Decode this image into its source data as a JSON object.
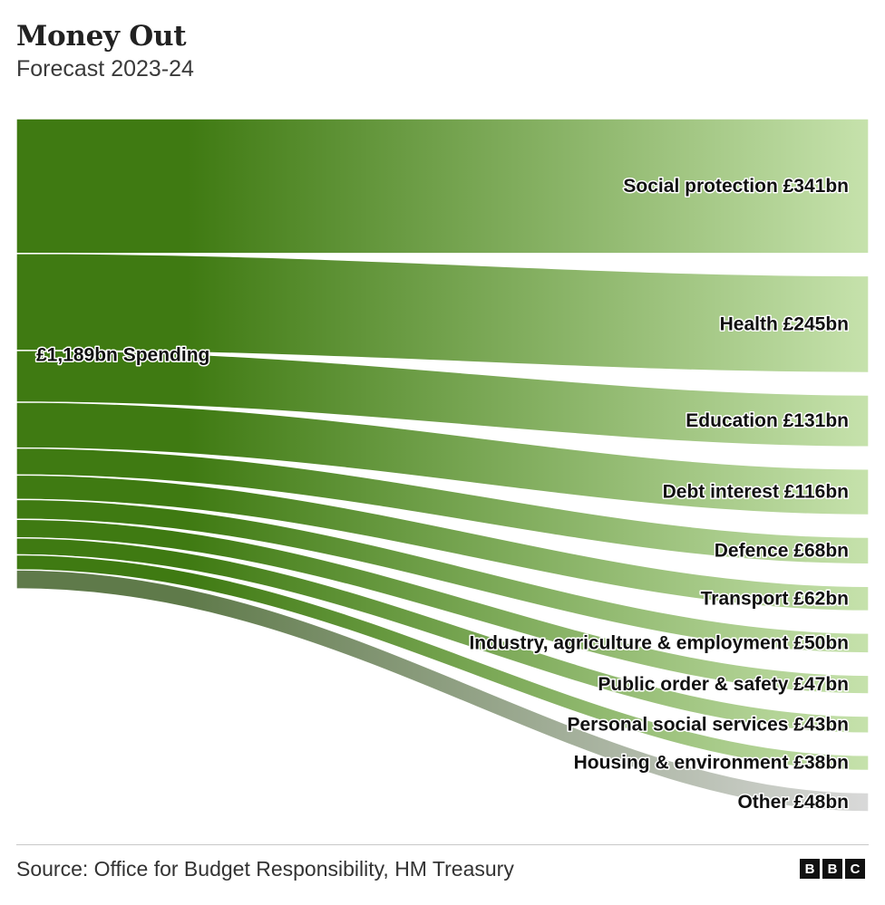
{
  "header": {
    "title": "Money Out",
    "subtitle": "Forecast 2023-24"
  },
  "footer": {
    "source": "Source: Office for Budget Responsibility, HM Treasury",
    "logo_letters": [
      "B",
      "B",
      "C"
    ]
  },
  "colors": {
    "source_dark": "#3f7a12",
    "target_light": "#c6e2ac",
    "other_dark": "#5f7a4a",
    "other_light": "#d9d9d9"
  },
  "chart_data": {
    "type": "sankey",
    "title": "Money Out",
    "subtitle": "Forecast 2023-24",
    "source_node": {
      "label": "£1,189bn Spending",
      "value": 1189,
      "unit": "£bn"
    },
    "flows": [
      {
        "label": "Social protection £341bn",
        "value": 341
      },
      {
        "label": "Health £245bn",
        "value": 245
      },
      {
        "label": "Education £131bn",
        "value": 131
      },
      {
        "label": "Debt interest £116bn",
        "value": 116
      },
      {
        "label": "Defence £68bn",
        "value": 68
      },
      {
        "label": "Transport £62bn",
        "value": 62
      },
      {
        "label": "Industry, agriculture & employment £50bn",
        "value": 50
      },
      {
        "label": "Public order & safety £47bn",
        "value": 47
      },
      {
        "label": "Personal social services £43bn",
        "value": 43
      },
      {
        "label": "Housing & environment £38bn",
        "value": 38
      },
      {
        "label": "Other £48bn",
        "value": 48,
        "style": "grey"
      }
    ]
  }
}
